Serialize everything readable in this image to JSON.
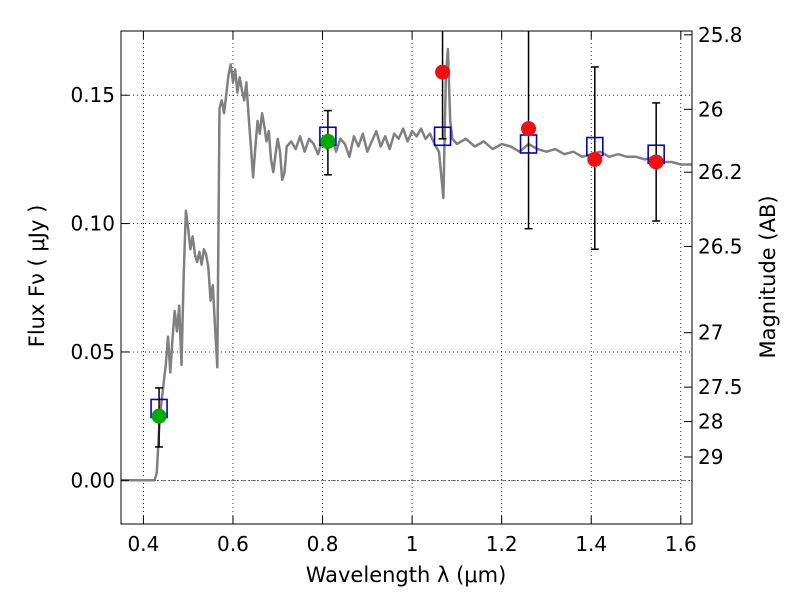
{
  "chart_data": {
    "type": "scatter",
    "title": "",
    "xlabel": "Wavelength  λ (μm)",
    "ylabel": "Flux  Fν  ( μJy )",
    "ylabel_right": "Magnitude (AB)",
    "xlim": [
      0.35,
      1.625
    ],
    "ylim": [
      -0.017,
      0.175
    ],
    "grid": true,
    "grid_style": "dotted",
    "x_ticks": [
      {
        "value": 0.4,
        "label": "0.4"
      },
      {
        "value": 0.6,
        "label": "0.6"
      },
      {
        "value": 0.8,
        "label": "0.8"
      },
      {
        "value": 1.0,
        "label": "1"
      },
      {
        "value": 1.2,
        "label": "1.2"
      },
      {
        "value": 1.4,
        "label": "1.4"
      },
      {
        "value": 1.6,
        "label": "1.6"
      }
    ],
    "y_ticks": [
      {
        "value": 0.0,
        "label": "0.00"
      },
      {
        "value": 0.05,
        "label": "0.05"
      },
      {
        "value": 0.1,
        "label": "0.10"
      },
      {
        "value": 0.15,
        "label": "0.15"
      }
    ],
    "mag_ticks": [
      {
        "label": "25.8",
        "flux": 0.1735
      },
      {
        "label": "26",
        "flux": 0.1445
      },
      {
        "label": "26.2",
        "flux": 0.12
      },
      {
        "label": "26.5",
        "flux": 0.0911
      },
      {
        "label": "27",
        "flux": 0.0575
      },
      {
        "label": "27.5",
        "flux": 0.0363
      },
      {
        "label": "28",
        "flux": 0.0229
      },
      {
        "label": "29",
        "flux": 0.0091
      }
    ],
    "colors": {
      "model": "#808080",
      "model_fit": "#0000cc",
      "green_points": "#00aa00",
      "red_points": "#ee1111",
      "zero_line": "#555555"
    },
    "series": [
      {
        "role": "model-spectrum",
        "kind": "line",
        "x": [
          0.35,
          0.4,
          0.425,
          0.43,
          0.435,
          0.44,
          0.45,
          0.455,
          0.46,
          0.465,
          0.47,
          0.475,
          0.48,
          0.485,
          0.49,
          0.495,
          0.5,
          0.505,
          0.51,
          0.515,
          0.52,
          0.525,
          0.53,
          0.535,
          0.54,
          0.545,
          0.55,
          0.555,
          0.56,
          0.565,
          0.57,
          0.575,
          0.58,
          0.585,
          0.59,
          0.595,
          0.6,
          0.605,
          0.61,
          0.615,
          0.62,
          0.625,
          0.63,
          0.635,
          0.64,
          0.645,
          0.65,
          0.655,
          0.66,
          0.665,
          0.67,
          0.675,
          0.68,
          0.685,
          0.69,
          0.695,
          0.7,
          0.705,
          0.71,
          0.715,
          0.72,
          0.73,
          0.74,
          0.75,
          0.76,
          0.77,
          0.78,
          0.79,
          0.8,
          0.81,
          0.82,
          0.83,
          0.84,
          0.85,
          0.86,
          0.87,
          0.88,
          0.89,
          0.9,
          0.91,
          0.92,
          0.93,
          0.94,
          0.95,
          0.96,
          0.97,
          0.98,
          0.99,
          1.0,
          1.01,
          1.02,
          1.03,
          1.04,
          1.05,
          1.06,
          1.07,
          1.075,
          1.08,
          1.085,
          1.09,
          1.1,
          1.12,
          1.14,
          1.16,
          1.18,
          1.2,
          1.22,
          1.24,
          1.26,
          1.28,
          1.3,
          1.32,
          1.34,
          1.36,
          1.38,
          1.4,
          1.42,
          1.44,
          1.46,
          1.48,
          1.5,
          1.52,
          1.54,
          1.56,
          1.58,
          1.6,
          1.625
        ],
        "y": [
          0.0,
          0.0,
          0.0,
          0.003,
          0.02,
          0.03,
          0.045,
          0.056,
          0.042,
          0.055,
          0.066,
          0.058,
          0.068,
          0.045,
          0.08,
          0.105,
          0.098,
          0.09,
          0.095,
          0.088,
          0.085,
          0.089,
          0.084,
          0.09,
          0.088,
          0.083,
          0.07,
          0.076,
          0.06,
          0.044,
          0.145,
          0.148,
          0.143,
          0.15,
          0.158,
          0.162,
          0.155,
          0.16,
          0.151,
          0.157,
          0.152,
          0.148,
          0.155,
          0.142,
          0.13,
          0.118,
          0.13,
          0.14,
          0.135,
          0.143,
          0.138,
          0.132,
          0.136,
          0.125,
          0.12,
          0.127,
          0.133,
          0.128,
          0.117,
          0.12,
          0.13,
          0.132,
          0.129,
          0.134,
          0.128,
          0.133,
          0.131,
          0.127,
          0.133,
          0.129,
          0.134,
          0.128,
          0.133,
          0.131,
          0.126,
          0.134,
          0.13,
          0.135,
          0.128,
          0.132,
          0.136,
          0.13,
          0.134,
          0.129,
          0.135,
          0.133,
          0.137,
          0.132,
          0.136,
          0.134,
          0.137,
          0.133,
          0.135,
          0.131,
          0.128,
          0.11,
          0.155,
          0.168,
          0.14,
          0.133,
          0.131,
          0.133,
          0.13,
          0.132,
          0.129,
          0.131,
          0.13,
          0.128,
          0.131,
          0.129,
          0.128,
          0.129,
          0.127,
          0.128,
          0.126,
          0.127,
          0.128,
          0.126,
          0.127,
          0.126,
          0.126,
          0.125,
          0.126,
          0.124,
          0.124,
          0.123,
          0.123
        ]
      },
      {
        "role": "model-photometry",
        "kind": "open-squares",
        "x": [
          0.435,
          0.812,
          1.068,
          1.26,
          1.408,
          1.545
        ],
        "y": [
          0.028,
          0.134,
          0.134,
          0.131,
          0.13,
          0.127
        ]
      },
      {
        "role": "observed-green",
        "kind": "points",
        "x": [
          0.435,
          0.812
        ],
        "y": [
          0.025,
          0.132
        ],
        "err_low": [
          0.012,
          0.013
        ],
        "err_high": [
          0.011,
          0.012
        ]
      },
      {
        "role": "observed-red",
        "kind": "points",
        "x": [
          1.068,
          1.26,
          1.408,
          1.545
        ],
        "y": [
          0.159,
          0.137,
          0.125,
          0.124
        ],
        "err_low": [
          0.026,
          0.039,
          0.035,
          0.023
        ],
        "err_high": [
          0.02,
          0.05,
          0.036,
          0.023
        ]
      }
    ]
  }
}
